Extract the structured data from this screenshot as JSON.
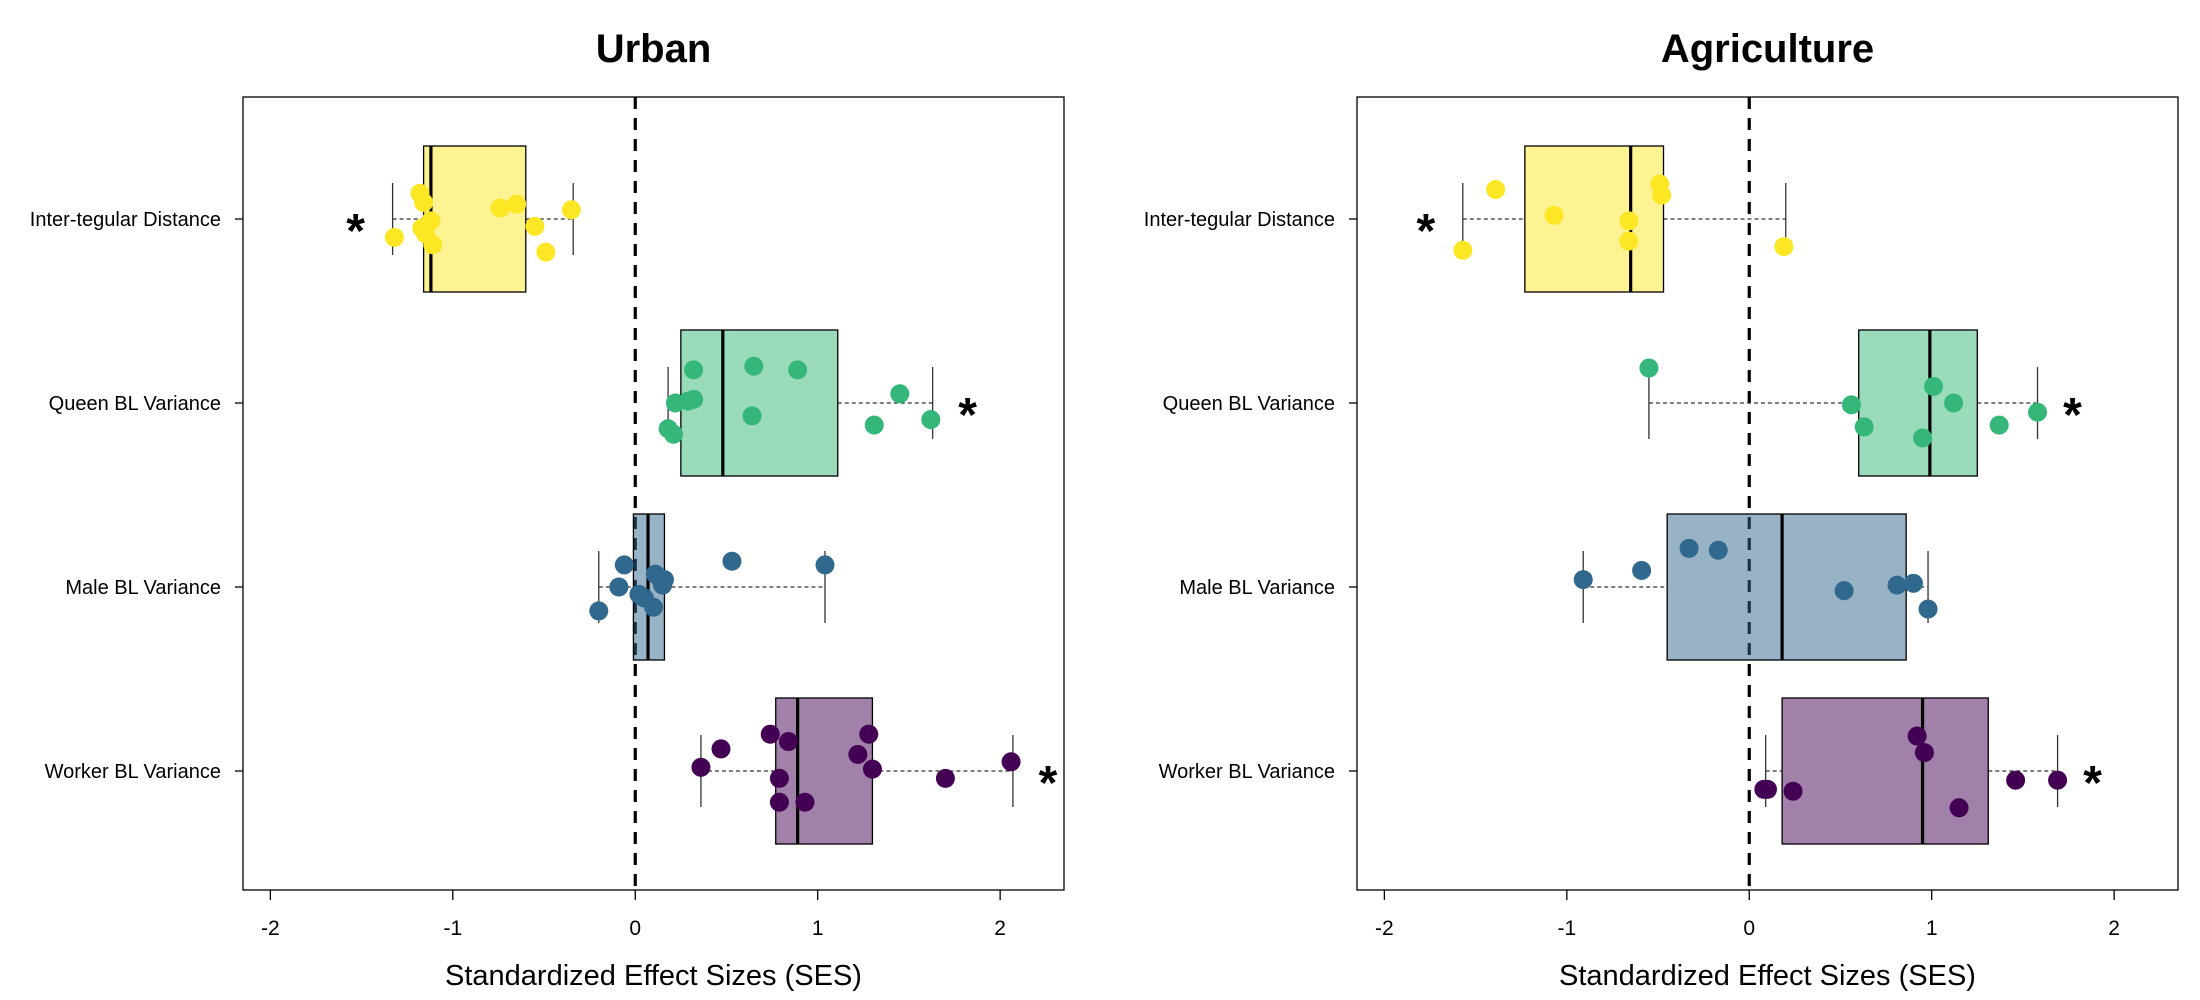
{
  "chart_data": [
    {
      "type": "boxplot",
      "orientation": "horizontal",
      "title": "Urban",
      "xlabel": "Standardized Effect Sizes (SES)",
      "xlim": [
        -2.15,
        2.35
      ],
      "xticks": [
        -2,
        -1,
        0,
        1,
        2
      ],
      "xtick_labels": [
        "-2",
        "-1",
        "0",
        "1",
        "2"
      ],
      "reference_line_x": 0,
      "categories": [
        "Inter-tegular Distance",
        "Queen BL Variance",
        "Male BL Variance",
        "Worker BL Variance"
      ],
      "series": [
        {
          "category": "Inter-tegular Distance",
          "color": "#fde725",
          "box": {
            "whisker_low": -1.33,
            "q1": -1.16,
            "median": -1.12,
            "q3": -0.6,
            "whisker_high": -0.34
          },
          "significant": true,
          "star_label": "*",
          "star_side": "left",
          "points": [
            {
              "x": -1.18,
              "jitter": -0.14
            },
            {
              "x": -1.16,
              "jitter": -0.09
            },
            {
              "x": -1.12,
              "jitter": 0.01
            },
            {
              "x": -1.15,
              "jitter": 0.08
            },
            {
              "x": -1.11,
              "jitter": 0.14
            },
            {
              "x": -1.32,
              "jitter": 0.1
            },
            {
              "x": -1.17,
              "jitter": 0.05
            },
            {
              "x": -0.74,
              "jitter": -0.06
            },
            {
              "x": -0.65,
              "jitter": -0.08
            },
            {
              "x": -0.55,
              "jitter": 0.04
            },
            {
              "x": -0.49,
              "jitter": 0.18
            },
            {
              "x": -0.35,
              "jitter": -0.05
            }
          ]
        },
        {
          "category": "Queen BL Variance",
          "color": "#35b779",
          "box": {
            "whisker_low": 0.18,
            "q1": 0.25,
            "median": 0.48,
            "q3": 1.11,
            "whisker_high": 1.63
          },
          "significant": true,
          "star_label": "*",
          "star_side": "right",
          "points": [
            {
              "x": 0.18,
              "jitter": 0.14
            },
            {
              "x": 0.21,
              "jitter": 0.17
            },
            {
              "x": 0.22,
              "jitter": 0.0
            },
            {
              "x": 0.29,
              "jitter": -0.01
            },
            {
              "x": 0.32,
              "jitter": -0.02
            },
            {
              "x": 0.32,
              "jitter": -0.18
            },
            {
              "x": 0.64,
              "jitter": 0.07
            },
            {
              "x": 0.65,
              "jitter": -0.2
            },
            {
              "x": 0.89,
              "jitter": -0.18
            },
            {
              "x": 1.31,
              "jitter": 0.12
            },
            {
              "x": 1.45,
              "jitter": -0.05
            },
            {
              "x": 1.62,
              "jitter": 0.09
            }
          ]
        },
        {
          "category": "Male BL Variance",
          "color": "#31688e",
          "box": {
            "whisker_low": -0.2,
            "q1": -0.01,
            "median": 0.07,
            "q3": 0.16,
            "whisker_high": 1.04
          },
          "significant": false,
          "points": [
            {
              "x": -0.2,
              "jitter": 0.13
            },
            {
              "x": -0.09,
              "jitter": 0.0
            },
            {
              "x": -0.06,
              "jitter": -0.12
            },
            {
              "x": 0.02,
              "jitter": 0.04
            },
            {
              "x": 0.05,
              "jitter": 0.06
            },
            {
              "x": 0.1,
              "jitter": 0.11
            },
            {
              "x": 0.11,
              "jitter": -0.07
            },
            {
              "x": 0.14,
              "jitter": -0.04
            },
            {
              "x": 0.16,
              "jitter": -0.04
            },
            {
              "x": 0.15,
              "jitter": -0.01
            },
            {
              "x": 0.53,
              "jitter": -0.14
            },
            {
              "x": 1.04,
              "jitter": -0.12
            }
          ]
        },
        {
          "category": "Worker BL Variance",
          "color": "#440154",
          "box": {
            "whisker_low": 0.36,
            "q1": 0.77,
            "median": 0.89,
            "q3": 1.3,
            "whisker_high": 2.07
          },
          "significant": true,
          "star_label": "*",
          "star_side": "right",
          "points": [
            {
              "x": 0.36,
              "jitter": -0.02
            },
            {
              "x": 0.47,
              "jitter": -0.12
            },
            {
              "x": 0.74,
              "jitter": -0.2
            },
            {
              "x": 0.79,
              "jitter": 0.04
            },
            {
              "x": 0.79,
              "jitter": 0.17
            },
            {
              "x": 0.84,
              "jitter": -0.16
            },
            {
              "x": 0.93,
              "jitter": 0.17
            },
            {
              "x": 1.22,
              "jitter": -0.09
            },
            {
              "x": 1.28,
              "jitter": -0.2
            },
            {
              "x": 1.3,
              "jitter": -0.01
            },
            {
              "x": 1.7,
              "jitter": 0.04
            },
            {
              "x": 2.06,
              "jitter": -0.05
            }
          ]
        }
      ]
    },
    {
      "type": "boxplot",
      "orientation": "horizontal",
      "title": "Agriculture",
      "xlabel": "Standardized Effect Sizes (SES)",
      "xlim": [
        -2.15,
        2.35
      ],
      "xticks": [
        -2,
        -1,
        0,
        1,
        2
      ],
      "xtick_labels": [
        "-2",
        "-1",
        "0",
        "1",
        "2"
      ],
      "reference_line_x": 0,
      "categories": [
        "Inter-tegular Distance",
        "Queen BL Variance",
        "Male BL Variance",
        "Worker BL Variance"
      ],
      "series": [
        {
          "category": "Inter-tegular Distance",
          "color": "#fde725",
          "box": {
            "whisker_low": -1.57,
            "q1": -1.23,
            "median": -0.65,
            "q3": -0.47,
            "whisker_high": 0.2
          },
          "significant": true,
          "star_label": "*",
          "star_side": "left",
          "points": [
            {
              "x": -1.57,
              "jitter": 0.17
            },
            {
              "x": -1.39,
              "jitter": -0.16
            },
            {
              "x": -1.07,
              "jitter": -0.02
            },
            {
              "x": -0.66,
              "jitter": 0.01
            },
            {
              "x": -0.66,
              "jitter": 0.12
            },
            {
              "x": -0.49,
              "jitter": -0.19
            },
            {
              "x": -0.48,
              "jitter": -0.13
            },
            {
              "x": 0.19,
              "jitter": 0.15
            }
          ]
        },
        {
          "category": "Queen BL Variance",
          "color": "#35b779",
          "box": {
            "whisker_low": -0.55,
            "q1": 0.6,
            "median": 0.99,
            "q3": 1.25,
            "whisker_high": 1.58
          },
          "significant": true,
          "star_label": "*",
          "star_side": "right",
          "points": [
            {
              "x": -0.55,
              "jitter": -0.19
            },
            {
              "x": 0.56,
              "jitter": 0.01
            },
            {
              "x": 0.63,
              "jitter": 0.13
            },
            {
              "x": 0.95,
              "jitter": 0.19
            },
            {
              "x": 1.01,
              "jitter": -0.09
            },
            {
              "x": 1.12,
              "jitter": 0.0
            },
            {
              "x": 1.37,
              "jitter": 0.12
            },
            {
              "x": 1.58,
              "jitter": 0.05
            }
          ]
        },
        {
          "category": "Male BL Variance",
          "color": "#31688e",
          "box": {
            "whisker_low": -0.91,
            "q1": -0.45,
            "median": 0.18,
            "q3": 0.86,
            "whisker_high": 0.98
          },
          "significant": false,
          "points": [
            {
              "x": -0.91,
              "jitter": -0.04
            },
            {
              "x": -0.59,
              "jitter": -0.09
            },
            {
              "x": -0.33,
              "jitter": -0.21
            },
            {
              "x": -0.17,
              "jitter": -0.2
            },
            {
              "x": 0.52,
              "jitter": 0.02
            },
            {
              "x": 0.81,
              "jitter": -0.01
            },
            {
              "x": 0.9,
              "jitter": -0.02
            },
            {
              "x": 0.98,
              "jitter": 0.12
            }
          ]
        },
        {
          "category": "Worker BL Variance",
          "color": "#440154",
          "box": {
            "whisker_low": 0.09,
            "q1": 0.18,
            "median": 0.95,
            "q3": 1.31,
            "whisker_high": 1.69
          },
          "significant": true,
          "star_label": "*",
          "star_side": "right",
          "points": [
            {
              "x": 0.08,
              "jitter": 0.1
            },
            {
              "x": 0.1,
              "jitter": 0.1
            },
            {
              "x": 0.24,
              "jitter": 0.11
            },
            {
              "x": 0.92,
              "jitter": -0.19
            },
            {
              "x": 0.96,
              "jitter": -0.1
            },
            {
              "x": 1.15,
              "jitter": 0.2
            },
            {
              "x": 1.46,
              "jitter": 0.05
            },
            {
              "x": 1.69,
              "jitter": 0.05
            }
          ]
        }
      ]
    }
  ]
}
